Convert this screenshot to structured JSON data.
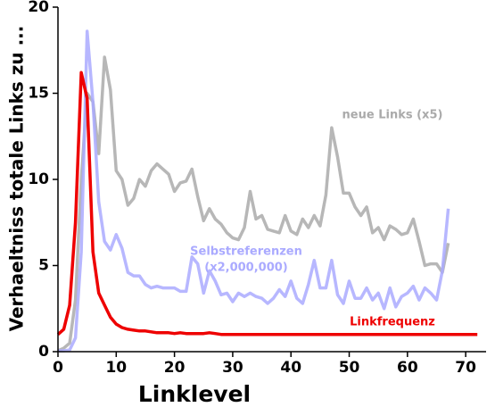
{
  "chart_data": {
    "type": "line",
    "xlabel": "Linklevel",
    "ylabel": "Verhaeltniss totale Links zu ...",
    "xlim": [
      0,
      73.5
    ],
    "ylim": [
      0,
      20
    ],
    "xticks": [
      0,
      10,
      20,
      30,
      40,
      50,
      60,
      70
    ],
    "yticks": [
      0,
      5,
      10,
      15,
      20
    ],
    "annotations": [
      "neue Links (x5)",
      "Selbstreferenzen",
      "(x2,000,000)",
      "Linkfrequenz"
    ],
    "series": [
      {
        "name": "neue Links (x5)",
        "color": "#aaaaaa",
        "x": [
          0,
          1,
          2,
          3,
          4,
          5,
          6,
          7,
          8,
          9,
          10,
          11,
          12,
          13,
          14,
          15,
          16,
          17,
          18,
          19,
          20,
          21,
          22,
          23,
          24,
          25,
          26,
          27,
          28,
          29,
          30,
          31,
          32,
          33,
          34,
          35,
          36,
          37,
          38,
          39,
          40,
          41,
          42,
          43,
          44,
          45,
          46,
          47,
          48,
          49,
          50,
          51,
          52,
          53,
          54,
          55,
          56,
          57,
          58,
          59,
          60,
          61,
          62,
          63,
          64,
          65,
          66,
          67
        ],
        "values": [
          0.05,
          0.2,
          0.5,
          3,
          10,
          15,
          14.5,
          11.5,
          17.1,
          15.2,
          10.5,
          10,
          8.5,
          8.9,
          10,
          9.6,
          10.5,
          10.9,
          10.6,
          10.3,
          9.3,
          9.8,
          9.9,
          10.6,
          9,
          7.6,
          8.3,
          7.7,
          7.4,
          6.9,
          6.6,
          6.5,
          7.2,
          9.3,
          7.7,
          7.9,
          7.1,
          7,
          6.9,
          7.9,
          7,
          6.8,
          7.7,
          7.2,
          7.9,
          7.3,
          9.1,
          13,
          11.3,
          9.2,
          9.2,
          8.4,
          7.9,
          8.4,
          6.9,
          7.2,
          6.5,
          7.3,
          7.1,
          6.8,
          6.9,
          7.7,
          6.4,
          5,
          5.1,
          5.1,
          4.6,
          6.3
        ]
      },
      {
        "name": "Selbstreferenzen (x2,000,000)",
        "color": "#aaaaff",
        "x": [
          0,
          1,
          2,
          3,
          4,
          5,
          6,
          7,
          8,
          9,
          10,
          11,
          12,
          13,
          14,
          15,
          16,
          17,
          18,
          19,
          20,
          21,
          22,
          23,
          24,
          25,
          26,
          27,
          28,
          29,
          30,
          31,
          32,
          33,
          34,
          35,
          36,
          37,
          38,
          39,
          40,
          41,
          42,
          43,
          44,
          45,
          46,
          47,
          48,
          49,
          50,
          51,
          52,
          53,
          54,
          55,
          56,
          57,
          58,
          59,
          60,
          61,
          62,
          63,
          64,
          65,
          66,
          67
        ],
        "values": [
          0.05,
          0.05,
          0.1,
          0.8,
          5.8,
          18.6,
          14.5,
          8.7,
          6.4,
          5.9,
          6.8,
          6,
          4.6,
          4.4,
          4.4,
          3.9,
          3.7,
          3.8,
          3.7,
          3.7,
          3.7,
          3.5,
          3.5,
          5.5,
          5.1,
          3.4,
          4.7,
          4.1,
          3.3,
          3.4,
          2.9,
          3.4,
          3.2,
          3.4,
          3.2,
          3.1,
          2.8,
          3.1,
          3.6,
          3.2,
          4.1,
          3.1,
          2.8,
          3.9,
          5.3,
          3.7,
          3.7,
          5.3,
          3.3,
          2.8,
          4.1,
          3.1,
          3.1,
          3.7,
          3,
          3.4,
          2.5,
          3.7,
          2.6,
          3.2,
          3.4,
          3.8,
          3,
          3.7,
          3.4,
          3,
          4.7,
          8.3
        ]
      },
      {
        "name": "Linkfrequenz",
        "color": "#ee0000",
        "x": [
          0,
          1,
          2,
          3,
          4,
          5,
          6,
          7,
          8,
          9,
          10,
          11,
          12,
          13,
          14,
          15,
          16,
          17,
          18,
          19,
          20,
          21,
          22,
          23,
          24,
          25,
          26,
          27,
          28,
          29,
          30,
          31,
          32,
          33,
          34,
          35,
          36,
          37,
          38,
          39,
          40,
          41,
          42,
          43,
          44,
          45,
          46,
          47,
          48,
          49,
          50,
          51,
          52,
          53,
          54,
          55,
          56,
          57,
          58,
          59,
          60,
          61,
          62,
          63,
          64,
          65,
          66,
          67,
          68,
          69,
          70,
          71,
          72
        ],
        "values": [
          1,
          1.3,
          2.7,
          7.5,
          16.2,
          14.7,
          5.8,
          3.4,
          2.7,
          2,
          1.6,
          1.4,
          1.3,
          1.25,
          1.2,
          1.2,
          1.15,
          1.1,
          1.1,
          1.1,
          1.05,
          1.1,
          1.05,
          1.05,
          1.05,
          1.05,
          1.1,
          1.05,
          1,
          1,
          1,
          1,
          1,
          1,
          1,
          1,
          1,
          1,
          1,
          1,
          1,
          1,
          1,
          1,
          1,
          1,
          1,
          1,
          1,
          1,
          1,
          1,
          1,
          1,
          1,
          1,
          1,
          1,
          1,
          1,
          1,
          1,
          1,
          1,
          1,
          1,
          1,
          1,
          1,
          1,
          1,
          1,
          1
        ]
      }
    ]
  }
}
